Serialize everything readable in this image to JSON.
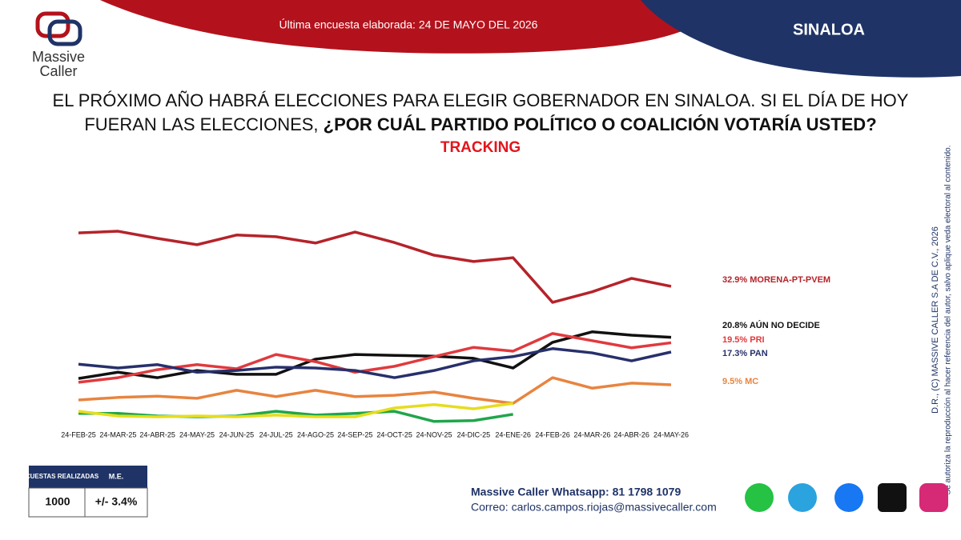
{
  "header": {
    "survey_note": "Última encuesta elaborada: 24 DE MAYO DEL 2026",
    "region": "SINALOA"
  },
  "logo": {
    "line1": "Massive",
    "line2": "Caller"
  },
  "title": {
    "line1": "EL PRÓXIMO AÑO HABRÁ ELECCIONES PARA ELEGIR GOBERNADOR EN SINALOA. SI EL DÍA DE HOY",
    "line2_plain": "FUERAN LAS ELECCIONES, ",
    "line2_bold": "¿POR CUÁL PARTIDO POLÍTICO O COALICIÓN VOTARÍA USTED?",
    "subtitle": "TRACKING"
  },
  "chart_data": {
    "type": "line",
    "categories": [
      "24-FEB-25",
      "24-MAR-25",
      "24-ABR-25",
      "24-MAY-25",
      "24-JUN-25",
      "24-JUL-25",
      "24-AGO-25",
      "24-SEP-25",
      "24-OCT-25",
      "24-NOV-25",
      "24-DIC-25",
      "24-ENE-26",
      "24-FEB-26",
      "24-MAR-26",
      "24-ABR-26",
      "24-MAY-26"
    ],
    "ylim": [
      0,
      50
    ],
    "series": [
      {
        "name": "32.9% MORENA-PT-PVEM",
        "color": "#b5232a",
        "values": [
          45.6,
          46.0,
          44.3,
          42.8,
          45.1,
          44.7,
          43.2,
          45.8,
          43.3,
          40.3,
          38.8,
          39.7,
          29.1,
          31.6,
          34.8,
          32.9
        ]
      },
      {
        "name": "20.8% AÚN NO DECIDE",
        "color": "#111111",
        "values": [
          11.0,
          12.5,
          11.2,
          12.9,
          12.0,
          12.0,
          15.6,
          16.7,
          16.5,
          16.3,
          15.8,
          13.5,
          19.6,
          22.1,
          21.3,
          20.8
        ]
      },
      {
        "name": "19.5% PRI",
        "color": "#e03a3e",
        "values": [
          10.1,
          11.2,
          13.1,
          14.3,
          13.3,
          16.7,
          15.0,
          12.5,
          13.9,
          16.2,
          18.4,
          17.5,
          21.7,
          20.0,
          18.3,
          19.5
        ]
      },
      {
        "name": "17.3% PAN",
        "color": "#27306b",
        "values": [
          14.4,
          13.5,
          14.3,
          12.5,
          12.9,
          13.7,
          13.5,
          12.9,
          11.2,
          12.9,
          15.2,
          16.2,
          18.1,
          17.1,
          15.2,
          17.3
        ]
      },
      {
        "name": "9.5% MC",
        "color": "#e8843f",
        "values": [
          5.9,
          6.5,
          6.8,
          6.3,
          8.2,
          6.7,
          8.2,
          6.7,
          7.0,
          7.8,
          6.3,
          5.1,
          11.2,
          8.7,
          9.9,
          9.5
        ]
      },
      {
        "color": "#1fa64a",
        "values": [
          2.7,
          2.7,
          2.1,
          1.9,
          2.1,
          3.2,
          2.3,
          2.7,
          3.2,
          0.8,
          1.0,
          2.5,
          null,
          null,
          null,
          null
        ]
      },
      {
        "color": "#e6dd1e",
        "values": [
          3.2,
          2.1,
          1.9,
          2.1,
          1.9,
          2.3,
          1.9,
          1.9,
          4.0,
          4.8,
          3.8,
          5.1,
          null,
          null,
          null,
          null
        ]
      }
    ]
  },
  "table": {
    "headers": [
      "ENCUESTAS REALIZADAS",
      "M.E."
    ],
    "row": [
      "1000",
      "+/- 3.4%"
    ]
  },
  "contact": [
    "Massive Caller Whatsapp: 81 1798 1079",
    "Correo: carlos.campos.riojas@massivecaller.com"
  ],
  "copyright": [
    "D.R., (C) MASSIVE CALLER S.A DE C.V., 2026",
    "Se autoriza la reproducción al hacer referencia del autor, salvo aplique veda electoral al contenido."
  ]
}
